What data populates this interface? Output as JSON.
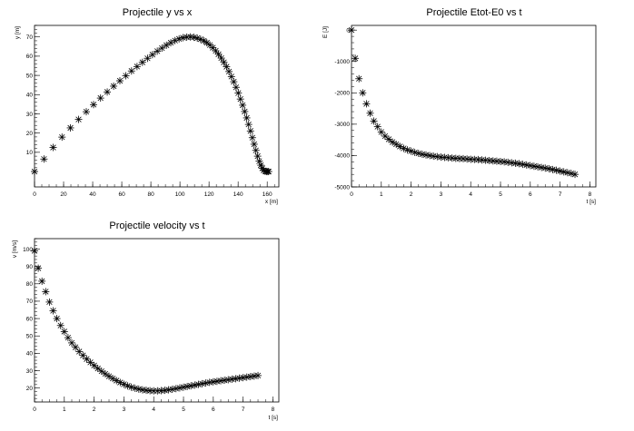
{
  "chart_data": [
    {
      "type": "scatter",
      "title": "Projectile y vs x",
      "xlabel": "x [m]",
      "ylabel": "y [m]",
      "xlim": [
        0,
        168
      ],
      "ylim": [
        -8,
        76
      ],
      "xticks": [
        0,
        20,
        40,
        60,
        80,
        100,
        120,
        140,
        160
      ],
      "yticks": [
        10,
        20,
        30,
        40,
        50,
        60,
        70
      ],
      "grid": false,
      "marker": "asterisk",
      "x": [
        0,
        6.5,
        12.8,
        18.9,
        24.7,
        30.3,
        35.6,
        40.6,
        45.4,
        50.0,
        54.4,
        58.7,
        62.8,
        66.7,
        70.5,
        74.2,
        77.7,
        81.1,
        84.4,
        87.6,
        90.7,
        93.7,
        96.6,
        99.4,
        102.1,
        104.7,
        107.2,
        109.6,
        111.9,
        114.2,
        116.4,
        118.5,
        120.6,
        122.6,
        124.6,
        126.5,
        128.4,
        130.2,
        132.0,
        133.7,
        135.4,
        137.0,
        138.6,
        140.1,
        141.6,
        143.1,
        144.5,
        145.9,
        147.2,
        148.5,
        149.8,
        151.0,
        152.2,
        153.4,
        154.5,
        155.6,
        156.6,
        157.6,
        158.6,
        159.5,
        160.4,
        161.0
      ],
      "y": [
        0,
        6.5,
        12.5,
        17.9,
        22.7,
        27.1,
        31.1,
        34.8,
        38.2,
        41.4,
        44.4,
        47.2,
        49.8,
        52.3,
        54.6,
        56.8,
        58.9,
        60.8,
        62.6,
        64.2,
        65.7,
        67.0,
        68.1,
        69.0,
        69.6,
        69.9,
        70.0,
        69.8,
        69.4,
        68.8,
        68.0,
        67.0,
        65.8,
        64.4,
        62.8,
        61.0,
        59.0,
        56.8,
        54.5,
        52.0,
        49.4,
        46.7,
        43.8,
        40.8,
        37.7,
        34.5,
        31.2,
        27.9,
        24.5,
        21.1,
        17.6,
        14.2,
        11.0,
        8.0,
        5.4,
        3.3,
        1.7,
        0.6,
        0.1,
        0.0,
        0.0,
        0.0
      ]
    },
    {
      "type": "scatter",
      "title": "Projectile Etot-E0 vs t",
      "xlabel": "t [s]",
      "ylabel": "E [J]",
      "xlim": [
        0,
        8.2
      ],
      "ylim": [
        -5000,
        150
      ],
      "xticks": [
        0,
        1,
        2,
        3,
        4,
        5,
        6,
        7,
        8
      ],
      "yticks": [
        0,
        -1000,
        -2000,
        -3000,
        -4000,
        -5000
      ],
      "grid": false,
      "marker": "asterisk",
      "x": [
        0,
        0.125,
        0.25,
        0.375,
        0.5,
        0.625,
        0.75,
        0.875,
        1.0,
        1.125,
        1.25,
        1.375,
        1.5,
        1.625,
        1.75,
        1.875,
        2.0,
        2.125,
        2.25,
        2.375,
        2.5,
        2.625,
        2.75,
        2.875,
        3.0,
        3.125,
        3.25,
        3.375,
        3.5,
        3.625,
        3.75,
        3.875,
        4.0,
        4.125,
        4.25,
        4.375,
        4.5,
        4.625,
        4.75,
        4.875,
        5.0,
        5.125,
        5.25,
        5.375,
        5.5,
        5.625,
        5.75,
        5.875,
        6.0,
        6.125,
        6.25,
        6.375,
        6.5,
        6.625,
        6.75,
        6.875,
        7.0,
        7.125,
        7.25,
        7.375,
        7.5
      ],
      "y": [
        0,
        -900,
        -1550,
        -2000,
        -2350,
        -2650,
        -2900,
        -3080,
        -3250,
        -3380,
        -3480,
        -3570,
        -3640,
        -3710,
        -3770,
        -3820,
        -3860,
        -3900,
        -3930,
        -3960,
        -3980,
        -4000,
        -4020,
        -4035,
        -4050,
        -4060,
        -4070,
        -4080,
        -4090,
        -4095,
        -4100,
        -4110,
        -4120,
        -4125,
        -4130,
        -4140,
        -4150,
        -4160,
        -4170,
        -4180,
        -4190,
        -4200,
        -4215,
        -4230,
        -4245,
        -4260,
        -4280,
        -4300,
        -4320,
        -4340,
        -4360,
        -4380,
        -4400,
        -4420,
        -4445,
        -4470,
        -4495,
        -4520,
        -4545,
        -4570,
        -4600
      ]
    },
    {
      "type": "scatter",
      "title": "Projectile velocity vs t",
      "xlabel": "t [s]",
      "ylabel": "v [m/s]",
      "xlim": [
        0,
        8.2
      ],
      "ylim": [
        12,
        106
      ],
      "xticks": [
        0,
        1,
        2,
        3,
        4,
        5,
        6,
        7,
        8
      ],
      "yticks": [
        20,
        30,
        40,
        50,
        60,
        70,
        80,
        90,
        100
      ],
      "grid": false,
      "marker": "asterisk",
      "x": [
        0,
        0.125,
        0.25,
        0.375,
        0.5,
        0.625,
        0.75,
        0.875,
        1.0,
        1.125,
        1.25,
        1.375,
        1.5,
        1.625,
        1.75,
        1.875,
        2.0,
        2.125,
        2.25,
        2.375,
        2.5,
        2.625,
        2.75,
        2.875,
        3.0,
        3.125,
        3.25,
        3.375,
        3.5,
        3.625,
        3.75,
        3.875,
        4.0,
        4.125,
        4.25,
        4.375,
        4.5,
        4.625,
        4.75,
        4.875,
        5.0,
        5.125,
        5.25,
        5.375,
        5.5,
        5.625,
        5.75,
        5.875,
        6.0,
        6.125,
        6.25,
        6.375,
        6.5,
        6.625,
        6.75,
        6.875,
        7.0,
        7.125,
        7.25,
        7.375,
        7.5
      ],
      "y": [
        99,
        89,
        81.5,
        75.5,
        69.5,
        64.5,
        60,
        56,
        52.5,
        49,
        46,
        43.5,
        41,
        38.8,
        36.7,
        34.8,
        33,
        31.3,
        29.7,
        28.2,
        26.8,
        25.5,
        24.3,
        23.2,
        22.2,
        21.3,
        20.5,
        19.9,
        19.4,
        19.0,
        18.7,
        18.5,
        18.4,
        18.4,
        18.5,
        18.7,
        19.0,
        19.3,
        19.7,
        20.1,
        20.5,
        20.9,
        21.3,
        21.7,
        22.1,
        22.5,
        22.9,
        23.3,
        23.6,
        23.9,
        24.2,
        24.5,
        24.8,
        25.1,
        25.4,
        25.7,
        26.0,
        26.3,
        26.6,
        26.9,
        27.2
      ]
    }
  ]
}
